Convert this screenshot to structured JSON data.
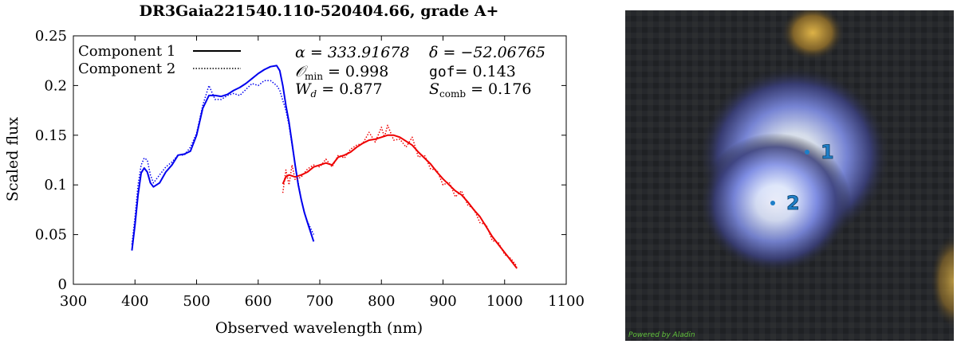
{
  "chart_data": {
    "type": "line",
    "title": "DR3Gaia221540.110-520404.66, grade A+",
    "xlabel": "Observed wavelength (nm)",
    "ylabel": "Scaled flux",
    "xlim": [
      300,
      1100
    ],
    "ylim": [
      0,
      0.25
    ],
    "xticks": [
      300,
      400,
      500,
      600,
      700,
      800,
      900,
      1000,
      1100
    ],
    "yticks": [
      0,
      0.05,
      0.1,
      0.15,
      0.2,
      0.25
    ],
    "xtick_labels": [
      "300",
      "400",
      "500",
      "600",
      "700",
      "800",
      "900",
      "1000",
      "1100"
    ],
    "ytick_labels": [
      "0",
      "0.05",
      "0.1",
      "0.15",
      "0.2",
      "0.25"
    ],
    "legend": {
      "position": "top-left",
      "entries": [
        "Component 1",
        "Component 2"
      ]
    },
    "annotations": {
      "alpha": "α = 333.91678",
      "delta": "δ = −52.06765",
      "omin_sym": "𝒪",
      "omin_sub": "min",
      "omin_val": " = 0.998",
      "gof_sym": "gof",
      "gof_val": "= 0.143",
      "wd_sym": "W",
      "wd_sub": "d",
      "wd_val": " = 0.877",
      "scomb_sym": "S",
      "scomb_sub": "comb",
      "scomb_val": " = 0.176"
    },
    "colors": {
      "blue_arm": "#0000ee",
      "red_arm": "#ee0000"
    },
    "series": [
      {
        "name": "Component 1",
        "style": "solid",
        "arms": [
          {
            "color": "blue",
            "x": [
              395,
              400,
              405,
              410,
              415,
              420,
              425,
              430,
              440,
              450,
              460,
              470,
              480,
              490,
              500,
              510,
              520,
              530,
              540,
              550,
              560,
              570,
              580,
              590,
              600,
              610,
              620,
              630,
              635,
              640,
              645,
              650,
              655,
              660,
              665,
              670,
              675,
              680,
              690
            ],
            "y": [
              0.034,
              0.06,
              0.09,
              0.112,
              0.117,
              0.113,
              0.102,
              0.098,
              0.102,
              0.113,
              0.12,
              0.13,
              0.131,
              0.134,
              0.15,
              0.177,
              0.19,
              0.19,
              0.189,
              0.191,
              0.195,
              0.198,
              0.202,
              0.207,
              0.212,
              0.216,
              0.219,
              0.22,
              0.215,
              0.2,
              0.18,
              0.163,
              0.142,
              0.12,
              0.1,
              0.085,
              0.072,
              0.062,
              0.043
            ]
          },
          {
            "color": "red",
            "x": [
              640,
              645,
              650,
              660,
              670,
              680,
              690,
              700,
              710,
              720,
              730,
              740,
              750,
              760,
              770,
              780,
              790,
              800,
              810,
              820,
              830,
              840,
              850,
              860,
              870,
              880,
              890,
              900,
              910,
              920,
              930,
              940,
              950,
              960,
              970,
              980,
              990,
              1000,
              1010,
              1020
            ],
            "y": [
              0.101,
              0.108,
              0.11,
              0.108,
              0.11,
              0.113,
              0.118,
              0.12,
              0.122,
              0.12,
              0.128,
              0.13,
              0.133,
              0.138,
              0.142,
              0.145,
              0.146,
              0.148,
              0.15,
              0.15,
              0.148,
              0.144,
              0.14,
              0.133,
              0.127,
              0.121,
              0.113,
              0.106,
              0.1,
              0.094,
              0.09,
              0.083,
              0.075,
              0.068,
              0.058,
              0.048,
              0.04,
              0.032,
              0.024,
              0.016
            ]
          }
        ]
      },
      {
        "name": "Component 2",
        "style": "dotted",
        "arms": [
          {
            "color": "blue",
            "x": [
              395,
              400,
              405,
              410,
              415,
              420,
              425,
              430,
              440,
              450,
              460,
              470,
              480,
              490,
              500,
              510,
              520,
              530,
              540,
              550,
              560,
              570,
              580,
              590,
              600,
              610,
              620,
              630,
              635,
              640,
              645,
              650,
              655,
              660,
              665,
              670,
              675,
              680,
              690
            ],
            "y": [
              0.04,
              0.068,
              0.1,
              0.12,
              0.127,
              0.125,
              0.11,
              0.102,
              0.11,
              0.118,
              0.123,
              0.13,
              0.13,
              0.138,
              0.152,
              0.18,
              0.2,
              0.186,
              0.186,
              0.19,
              0.192,
              0.19,
              0.196,
              0.202,
              0.2,
              0.205,
              0.205,
              0.2,
              0.195,
              0.185,
              0.175,
              0.16,
              0.14,
              0.12,
              0.102,
              0.085,
              0.072,
              0.063,
              0.05
            ]
          },
          {
            "color": "red",
            "x": [
              640,
              645,
              650,
              655,
              660,
              670,
              680,
              690,
              700,
              710,
              720,
              730,
              740,
              750,
              760,
              770,
              780,
              790,
              800,
              805,
              810,
              820,
              830,
              840,
              850,
              860,
              870,
              880,
              890,
              900,
              910,
              920,
              930,
              940,
              950,
              960,
              970,
              980,
              990,
              1000,
              1010,
              1020
            ],
            "y": [
              0.092,
              0.115,
              0.1,
              0.12,
              0.105,
              0.108,
              0.116,
              0.12,
              0.118,
              0.126,
              0.118,
              0.13,
              0.127,
              0.136,
              0.14,
              0.142,
              0.153,
              0.143,
              0.158,
              0.148,
              0.16,
              0.145,
              0.146,
              0.138,
              0.148,
              0.128,
              0.13,
              0.116,
              0.115,
              0.1,
              0.103,
              0.088,
              0.094,
              0.08,
              0.076,
              0.062,
              0.06,
              0.044,
              0.042,
              0.03,
              0.026,
              0.018
            ]
          }
        ]
      }
    ]
  },
  "sky_image": {
    "sources": [
      {
        "label": "1"
      },
      {
        "label": "2"
      }
    ],
    "credit": "Powered by Aladin"
  }
}
